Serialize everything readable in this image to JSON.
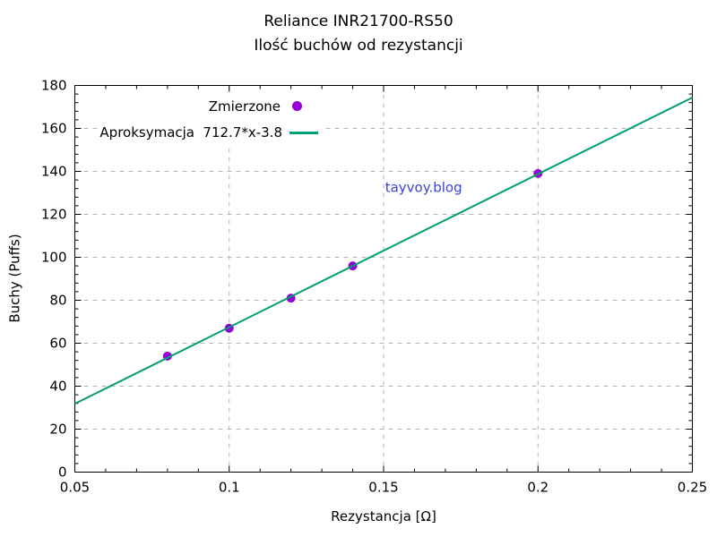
{
  "page": {
    "background": "#ffffff"
  },
  "title": {
    "line1": "Reliance INR21700-RS50",
    "line2": "Ilość buchów od rezystancji"
  },
  "legend": {
    "rows": [
      {
        "label_left": "",
        "label_right": "Zmierzone",
        "marker": "point",
        "color": "#9400d3"
      },
      {
        "label_left": "Aproksymacja",
        "label_right": "712.7*x-3.8",
        "marker": "line",
        "color": "#009e73"
      }
    ]
  },
  "chart_data": {
    "type": "scatter",
    "title": "Reliance INR21700-RS50",
    "subtitle": "Ilość buchów od rezystancji",
    "xlabel": "Rezystancja [Ω]",
    "ylabel": "Buchy (Puffs)",
    "xlim": [
      0.05,
      0.25
    ],
    "ylim": [
      0,
      180
    ],
    "xticks": {
      "values": [
        0.05,
        0.1,
        0.15,
        0.2,
        0.25
      ],
      "labels": [
        "0.05",
        "0.1",
        "0.15",
        "0.2",
        "0.25"
      ],
      "minor_step": 0.01
    },
    "yticks": {
      "values": [
        0,
        20,
        40,
        60,
        80,
        100,
        120,
        140,
        160,
        180
      ],
      "labels": [
        "0",
        "20",
        "40",
        "60",
        "80",
        "100",
        "120",
        "140",
        "160",
        "180"
      ],
      "minor_step": 4
    },
    "grid": {
      "style": "dashed",
      "color": "#b3b3b3",
      "x_lines": [
        0.1,
        0.15,
        0.2
      ],
      "y_lines": [
        20,
        40,
        60,
        80,
        100,
        120,
        140,
        160
      ]
    },
    "legend_position": "top-left-inside",
    "series": [
      {
        "name": "Zmierzone",
        "type": "points",
        "color": "#9400d3",
        "points": [
          [
            0.08,
            54
          ],
          [
            0.1,
            67
          ],
          [
            0.12,
            81
          ],
          [
            0.14,
            96
          ],
          [
            0.2,
            139
          ]
        ]
      },
      {
        "name": "Aproksymacja",
        "type": "line",
        "color": "#009e73",
        "formula": "712.7*x-3.8",
        "slope": 712.7,
        "intercept": -3.8,
        "x_range": [
          0.05,
          0.25
        ]
      }
    ],
    "watermark": {
      "text": "tayvoy.blog",
      "color": "#3a45d4",
      "x": 0.1505,
      "y": 132.5
    }
  }
}
